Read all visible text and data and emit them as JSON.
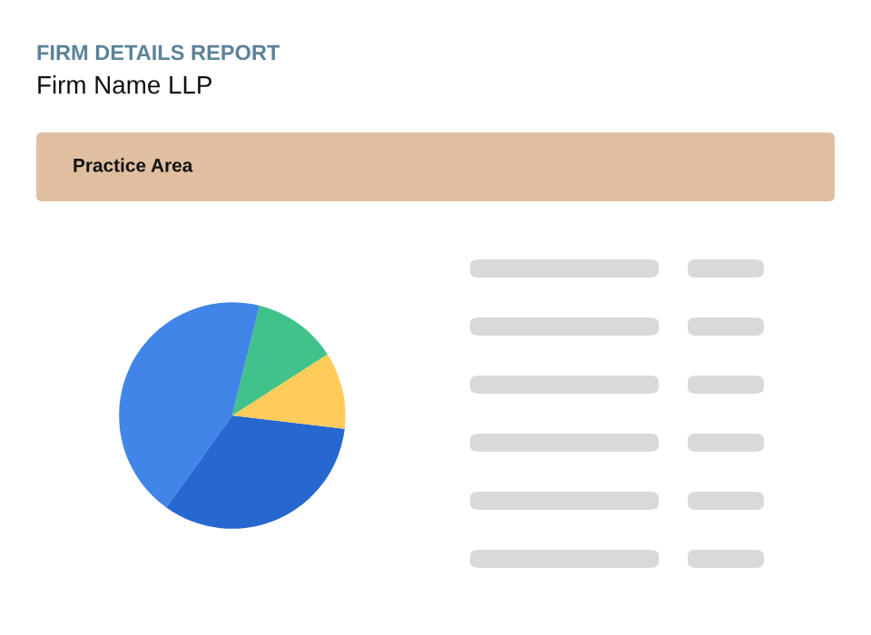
{
  "chart_data": {
    "type": "pie",
    "title": "FIRM DETAILS REPORT",
    "subtitle": "Firm Name LLP",
    "annotations": [
      "Practice Area"
    ],
    "categories": [
      null,
      null,
      null,
      null
    ],
    "values": [
      44,
      33,
      11,
      12
    ],
    "colors": [
      "#4285e8",
      "#2767d0",
      "#ffcc5c",
      "#40c28a"
    ],
    "legend": false
  }
}
